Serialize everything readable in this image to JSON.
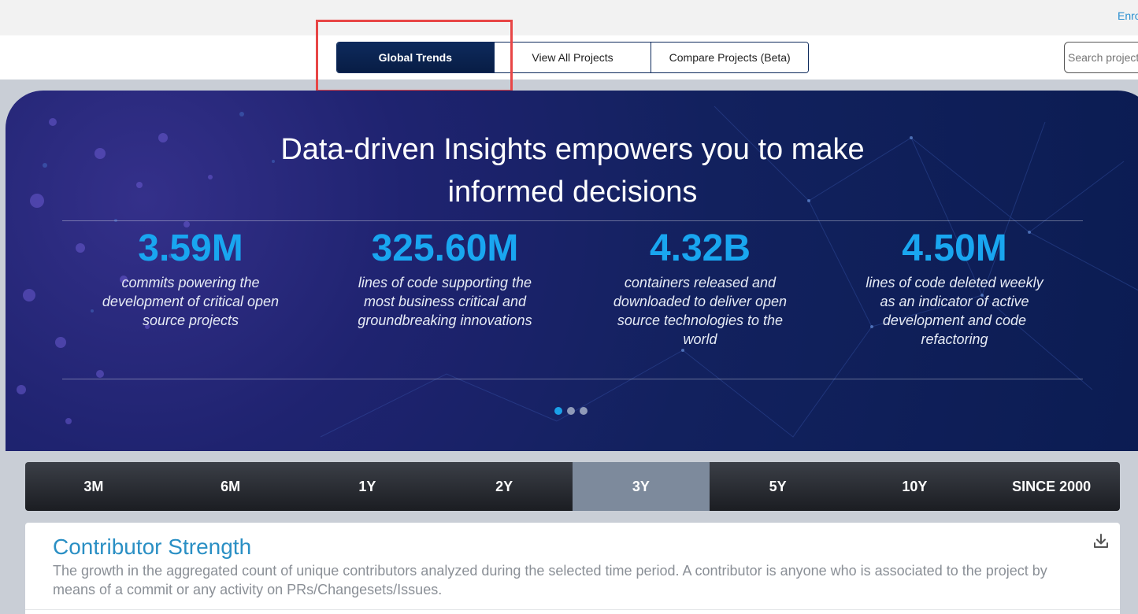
{
  "topbar": {
    "enroll_label": "Enroll"
  },
  "nav": {
    "tabs": [
      {
        "label": "Global Trends",
        "active": true
      },
      {
        "label": "View All Projects",
        "active": false
      },
      {
        "label": "Compare Projects (Beta)",
        "active": false
      }
    ],
    "search_placeholder": "Search projects"
  },
  "hero": {
    "title_line1": "Data-driven Insights empowers you to make",
    "title_line2": "informed decisions",
    "stats": [
      {
        "value": "3.59M",
        "desc": "commits powering the development of critical open source projects"
      },
      {
        "value": "325.60M",
        "desc": "lines of code supporting the most business critical and groundbreaking innovations"
      },
      {
        "value": "4.32B",
        "desc": "containers released and downloaded to deliver open source technologies to the world"
      },
      {
        "value": "4.50M",
        "desc": "lines of code deleted weekly as an indicator of active development and code refactoring"
      }
    ],
    "carousel": {
      "pages": 3,
      "active_index": 0
    }
  },
  "periods": {
    "options": [
      "3M",
      "6M",
      "1Y",
      "2Y",
      "3Y",
      "5Y",
      "10Y",
      "SINCE 2000"
    ],
    "selected": "3Y"
  },
  "card": {
    "title": "Contributor Strength",
    "description": "The growth in the aggregated count of unique contributors analyzed during the selected time period. A contributor is anyone who is associated to the project by means of a commit or any activity on PRs/Changesets/Issues.",
    "download_icon": "download-icon"
  },
  "colors": {
    "accent": "#19a6f0",
    "nav_active": "#0d2a5c",
    "highlight": "#e84646",
    "period_selected": "#7d8a9c"
  }
}
